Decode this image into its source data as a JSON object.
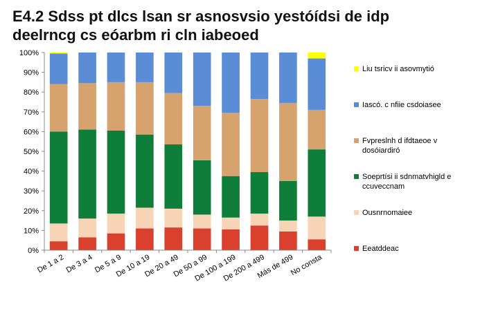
{
  "chart_data": {
    "type": "bar",
    "stacked": true,
    "title": "E4.2 Sdss pt dlcs lsan sr asnosvsio yestóídsi de idp deelrncg cs eóarbm ri cln iabeoed",
    "xlabel": "",
    "ylabel": "",
    "ylim": [
      0,
      100
    ],
    "y_ticks": [
      "0%",
      "10%",
      "20%",
      "30%",
      "40%",
      "50%",
      "60%",
      "70%",
      "80%",
      "90%",
      "100%"
    ],
    "categories": [
      "De 1 a 2",
      "De 3 a 4",
      "De 5 a 9",
      "De 10 a 19",
      "De 20 a 49",
      "De 50 a 99",
      "De 100 a 199",
      "De 200 a 499",
      "Más de 499",
      "No consta"
    ],
    "series": [
      {
        "name": "Eeatddeac",
        "color": "#D9412E",
        "values": [
          4.5,
          6.5,
          8.5,
          11,
          11.5,
          11,
          10.5,
          12.5,
          9.5,
          5.5
        ]
      },
      {
        "name": "Ousnrnomaiee",
        "color": "#F7D4B5",
        "values": [
          9,
          9.5,
          10,
          10.5,
          9.5,
          7,
          6,
          6,
          5.5,
          11.5
        ]
      },
      {
        "name": "Soeprtísi ii sdnmatvhigld e ccuveccnam",
        "color": "#0F7E3A",
        "values": [
          46.5,
          45,
          42,
          37,
          32.5,
          27.5,
          21,
          21,
          20,
          34
        ]
      },
      {
        "name": "Fvpreslnh d ifdtaeoe v dosóiardiró",
        "color": "#D6A26E",
        "values": [
          24,
          23.5,
          24.5,
          26.5,
          26,
          27.5,
          32,
          37,
          39.5,
          20
        ]
      },
      {
        "name": "Iascó. c nfiie csdoiasee",
        "color": "#5A8DD6",
        "values": [
          15.5,
          15.5,
          15,
          15,
          20.5,
          27,
          30.5,
          23.5,
          25.5,
          26
        ]
      },
      {
        "name": "Liu tsricv ii asovmytió",
        "color": "#FFFF00",
        "values": [
          0.5,
          0,
          0,
          0,
          0,
          0,
          0,
          0,
          0,
          3
        ]
      }
    ],
    "legend_position": "right",
    "grid": false
  }
}
